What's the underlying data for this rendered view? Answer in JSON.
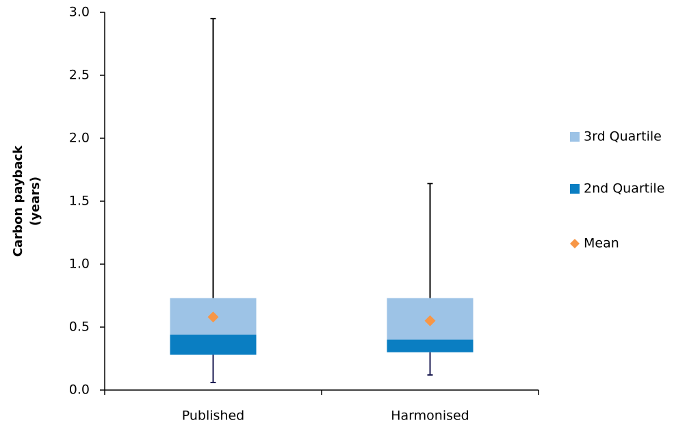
{
  "chart_data": {
    "type": "box",
    "ylabel": [
      "Carbon payback",
      "(years)"
    ],
    "categories": [
      "Published",
      "Harmonised"
    ],
    "low": [
      0.06,
      0.12
    ],
    "q1": [
      0.28,
      0.3
    ],
    "high": [
      2.95,
      1.64
    ],
    "series": [
      {
        "name": "3rd Quartile",
        "color": "#9dc3e6",
        "values": [
          0.73,
          0.73
        ]
      },
      {
        "name": "2nd Quartile",
        "color": "#0a7ec2",
        "values": [
          0.44,
          0.4
        ]
      },
      {
        "name": "Mean",
        "color": "#f79646",
        "values": [
          0.58,
          0.55
        ]
      }
    ],
    "ylim": [
      0,
      3
    ],
    "yticks": [
      {
        "value": 0,
        "label": "0.0"
      },
      {
        "value": 0.5,
        "label": "0.5"
      },
      {
        "value": 1,
        "label": "1.0"
      },
      {
        "value": 1.5,
        "label": "1.5"
      },
      {
        "value": 2,
        "label": "2.0"
      },
      {
        "value": 2.5,
        "label": "2.5"
      },
      {
        "value": 3,
        "label": "3.0"
      }
    ],
    "legend": "right"
  }
}
